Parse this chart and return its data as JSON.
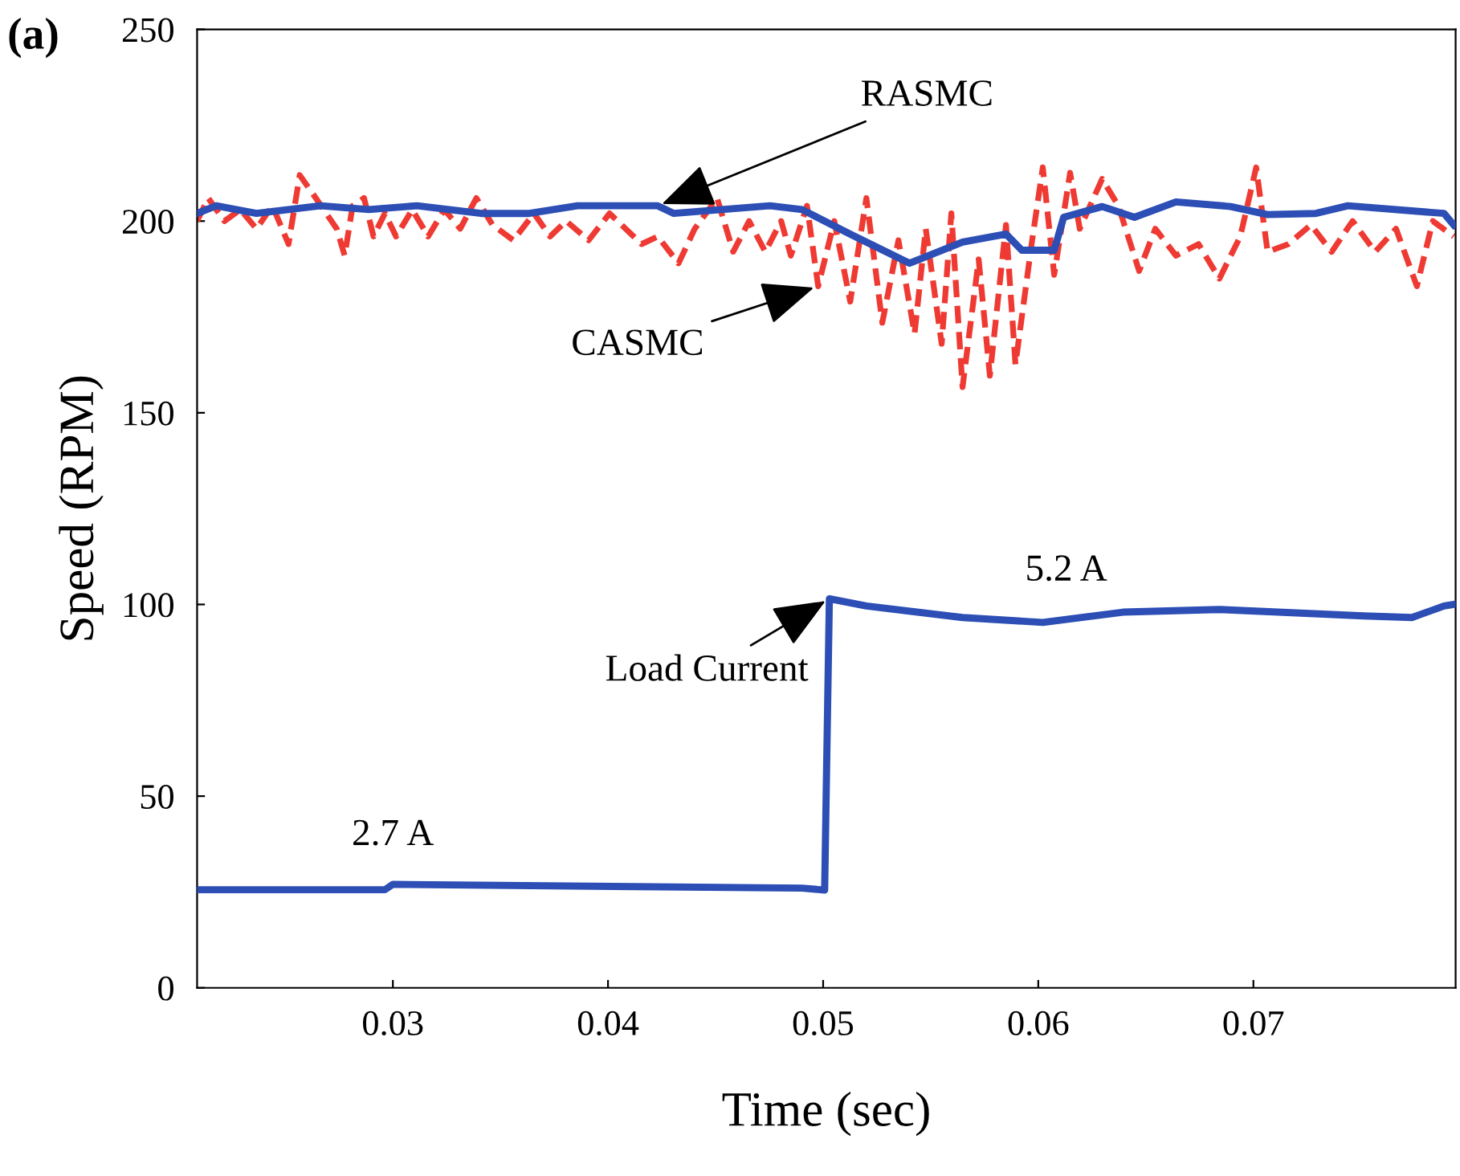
{
  "chart_data": {
    "type": "line",
    "xlabel": "Time (sec)",
    "ylabel": "Speed (RPM)",
    "xlim": [
      0.0209,
      0.0794
    ],
    "ylim": [
      0,
      250
    ],
    "xticks": [
      0.03,
      0.04,
      0.05,
      0.06,
      0.07
    ],
    "yticks": [
      0,
      50,
      100,
      150,
      200,
      250
    ],
    "grid": false,
    "legend": false,
    "series": [
      {
        "name": "RASMC",
        "color": "#2c4eb5",
        "line_style": "solid",
        "x": [
          0.0209,
          0.02179,
          0.02366,
          0.02664,
          0.02888,
          0.03112,
          0.0341,
          0.03634,
          0.03858,
          0.04231,
          0.04306,
          0.04529,
          0.04753,
          0.04902,
          0.05126,
          0.05402,
          0.05648,
          0.0585,
          0.05924,
          0.06074,
          0.06118,
          0.06297,
          0.06447,
          0.0664,
          0.06894,
          0.07066,
          0.0729,
          0.07439,
          0.07886,
          0.07931
        ],
        "values": [
          202,
          204,
          202,
          204,
          203,
          204,
          202,
          202,
          204,
          204,
          202,
          203,
          204,
          203,
          196.6,
          189,
          194.5,
          196.6,
          192.4,
          192.4,
          201,
          203.8,
          201,
          205,
          203.8,
          201.7,
          202,
          204,
          202,
          199
        ]
      },
      {
        "name": "CASMC",
        "color": "#ee3a32",
        "line_style": "dashed",
        "x": [
          0.0209,
          0.02142,
          0.02217,
          0.02291,
          0.02366,
          0.0244,
          0.02515,
          0.02567,
          0.02642,
          0.02739,
          0.02776,
          0.02813,
          0.02866,
          0.0291,
          0.02963,
          0.03015,
          0.0309,
          0.03164,
          0.03239,
          0.03313,
          0.03388,
          0.03463,
          0.0356,
          0.03656,
          0.03731,
          0.03806,
          0.0391,
          0.04007,
          0.04082,
          0.04156,
          0.04231,
          0.04328,
          0.04403,
          0.04507,
          0.04582,
          0.04656,
          0.04731,
          0.04805,
          0.0485,
          0.04925,
          0.04977,
          0.05052,
          0.05126,
          0.05201,
          0.05275,
          0.0535,
          0.05425,
          0.05477,
          0.05551,
          0.05596,
          0.05648,
          0.05723,
          0.05775,
          0.0585,
          0.05894,
          0.05969,
          0.06021,
          0.06074,
          0.06148,
          0.06193,
          0.06297,
          0.06372,
          0.06469,
          0.06544,
          0.0664,
          0.06745,
          0.06842,
          0.06939,
          0.07013,
          0.07066,
          0.07163,
          0.07267,
          0.07364,
          0.07461,
          0.07566,
          0.07663,
          0.0776,
          0.07834,
          0.07931
        ],
        "values": [
          200,
          206,
          200,
          203,
          198,
          204,
          194,
          212,
          206,
          198,
          191,
          204,
          206,
          196,
          202,
          196,
          203,
          196,
          203,
          198,
          206,
          199,
          195,
          202,
          196,
          200,
          195,
          202,
          198,
          194,
          196,
          189,
          198,
          206,
          192,
          200,
          192,
          200,
          191,
          204,
          183,
          200,
          179,
          206,
          173.5,
          195,
          170.6,
          198,
          168,
          202,
          156.7,
          190,
          159.7,
          199,
          162.6,
          194,
          214,
          186,
          212.6,
          198,
          211,
          204,
          187,
          198,
          191,
          194,
          185,
          196,
          214,
          192,
          194,
          199,
          192,
          200,
          192,
          198,
          183,
          200,
          196
        ]
      },
      {
        "name": "Load Current",
        "color": "#2c4eb5",
        "line_style": "solid",
        "x": [
          0.0209,
          0.02963,
          0.03,
          0.04902,
          0.05007,
          0.05029,
          0.05201,
          0.05648,
          0.06021,
          0.06394,
          0.06842,
          0.07513,
          0.07737,
          0.07886,
          0.07931
        ],
        "values": [
          25.6,
          25.6,
          27,
          26,
          25.5,
          101.5,
          99.6,
          96.6,
          95.3,
          98,
          98.7,
          97,
          96.6,
          99.6,
          100
        ]
      }
    ],
    "annotations": [
      {
        "text": "2.7 A",
        "x": 0.03,
        "y": 27
      },
      {
        "text": "5.2 A",
        "x": 0.0613,
        "y": 96
      },
      "(a)"
    ]
  }
}
